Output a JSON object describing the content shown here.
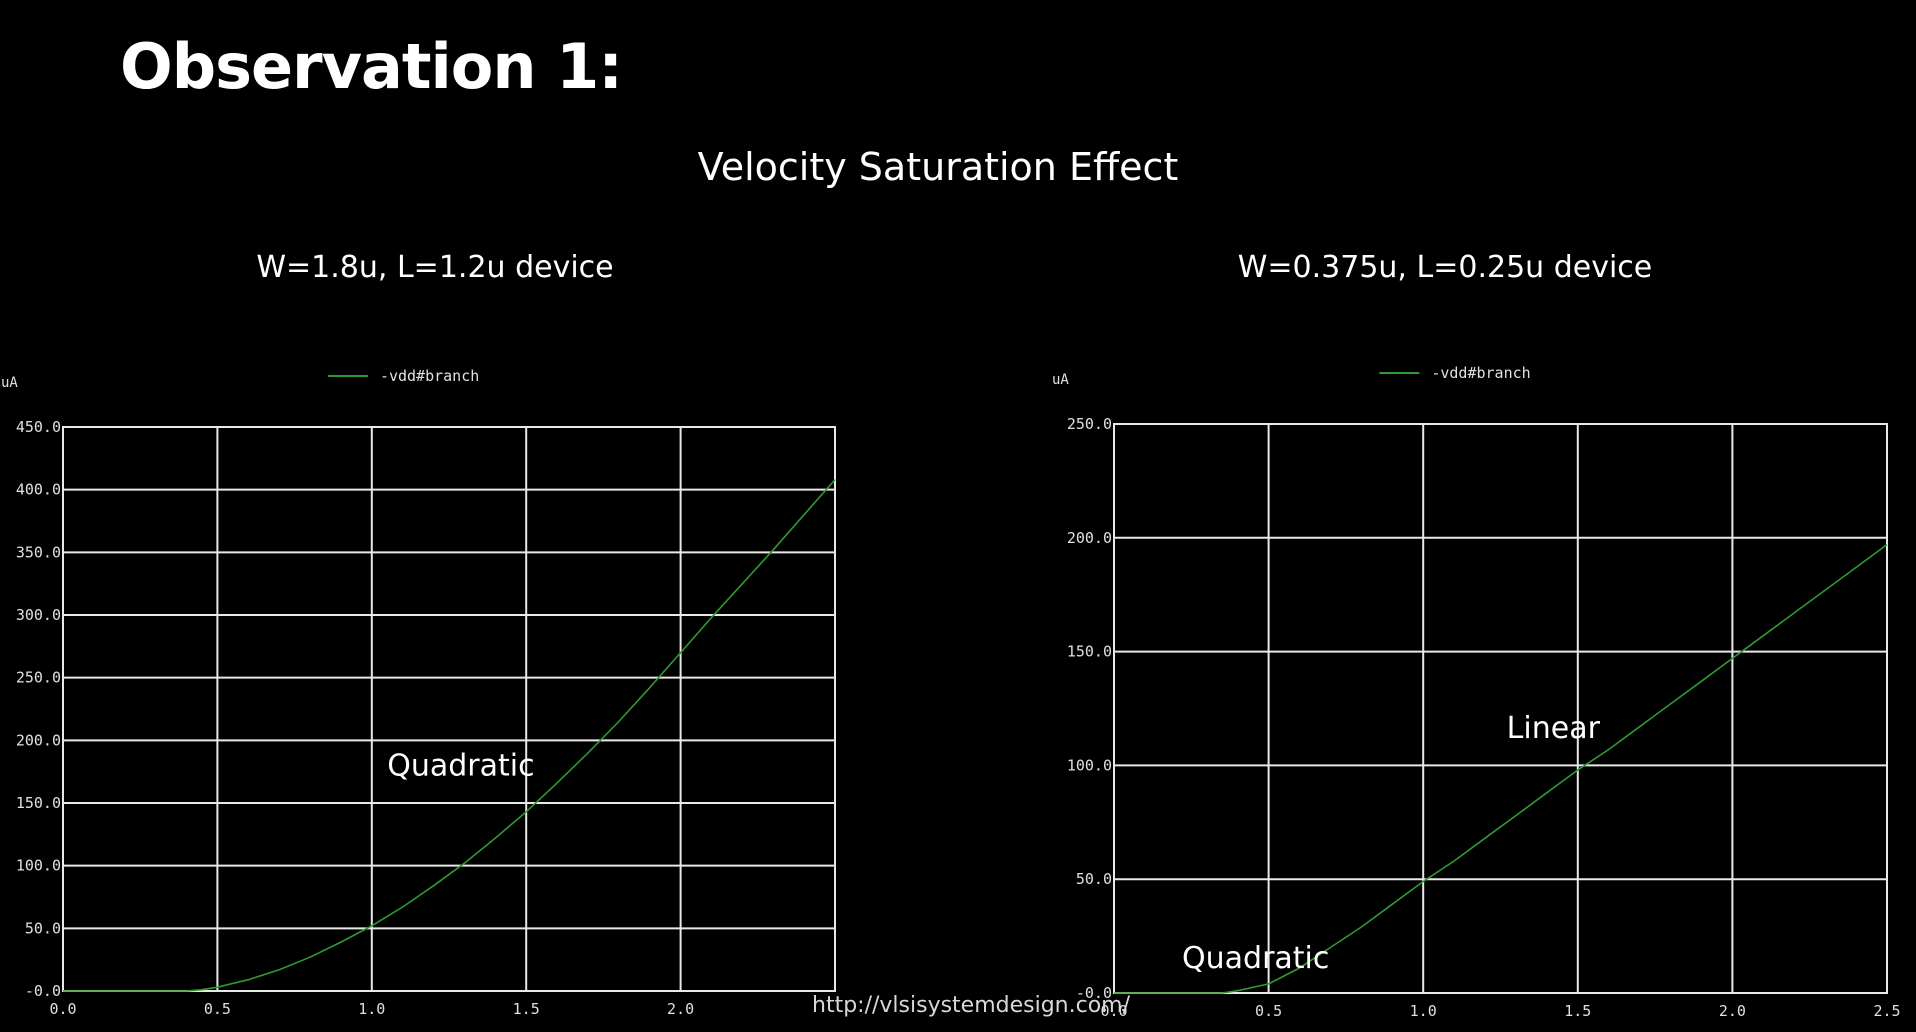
{
  "slide": {
    "heading": "Observation 1:",
    "subheading": "Velocity Saturation Effect",
    "url": "http://vlsisystemdesign.com/"
  },
  "colors": {
    "background": "#000000",
    "grid": "#e8e8e8",
    "trace": "#2f9a2f",
    "text": "#ffffff"
  },
  "chart_data": [
    {
      "type": "line",
      "device_title": "W=1.8u, L=1.2u device",
      "title": "",
      "xlabel": "",
      "ylabel": "uA",
      "xlim": [
        0,
        2.5
      ],
      "ylim": [
        0,
        450
      ],
      "xticks": [
        0.0,
        0.5,
        1.0,
        1.5,
        2.0
      ],
      "xtick_labels": [
        "0.0",
        "0.5",
        "1.0",
        "1.5",
        "2.0"
      ],
      "yticks": [
        0,
        50,
        100,
        150,
        200,
        250,
        300,
        350,
        400,
        450
      ],
      "ytick_labels": [
        "-0.0",
        "50.0",
        "100.0",
        "150.0",
        "200.0",
        "250.0",
        "300.0",
        "350.0",
        "400.0",
        "450.0"
      ],
      "grid": true,
      "legend": "top-center",
      "series": [
        {
          "name": "-vdd#branch",
          "x": [
            0.0,
            0.4,
            0.45,
            0.5,
            0.6,
            0.7,
            0.8,
            0.9,
            1.0,
            1.1,
            1.2,
            1.3,
            1.4,
            1.5,
            1.6,
            1.7,
            1.8,
            1.9,
            2.0,
            2.1,
            2.2,
            2.3,
            2.4,
            2.5
          ],
          "y": [
            0,
            0,
            1,
            3,
            9,
            17,
            27,
            39,
            52,
            67,
            84,
            102,
            122,
            143,
            166,
            190,
            215,
            242,
            270,
            298,
            325,
            352,
            380,
            408
          ]
        }
      ],
      "annotations": [
        {
          "text": "Quadratic",
          "x": 1.05,
          "y": 172
        }
      ]
    },
    {
      "type": "line",
      "device_title": "W=0.375u, L=0.25u device",
      "title": "",
      "xlabel": "",
      "ylabel": "uA",
      "xlim": [
        0,
        2.5
      ],
      "ylim": [
        0,
        250
      ],
      "xticks": [
        0.0,
        0.5,
        1.0,
        1.5,
        2.0,
        2.5
      ],
      "xtick_labels": [
        "0.0",
        "0.5",
        "1.0",
        "1.5",
        "2.0",
        "2.5"
      ],
      "yticks": [
        0,
        50,
        100,
        150,
        200,
        250
      ],
      "ytick_labels": [
        "-0.0",
        "50.0",
        "100.0",
        "150.0",
        "200.0",
        "250.0"
      ],
      "grid": true,
      "legend": "top-center",
      "series": [
        {
          "name": "-vdd#branch",
          "x": [
            0.0,
            0.35,
            0.4,
            0.5,
            0.6,
            0.7,
            0.8,
            0.9,
            1.0,
            1.1,
            1.2,
            1.3,
            1.4,
            1.5,
            1.6,
            1.7,
            1.8,
            1.9,
            2.0,
            2.1,
            2.2,
            2.3,
            2.4,
            2.5
          ],
          "y": [
            0,
            0,
            1,
            4,
            11,
            20,
            29,
            39,
            49,
            58,
            68,
            78,
            88,
            98,
            107,
            117,
            127,
            137,
            147,
            157,
            167,
            177,
            187,
            197
          ]
        }
      ],
      "annotations": [
        {
          "text": "Linear",
          "x": 1.27,
          "y": 112
        },
        {
          "text": "Quadratic",
          "x": 0.22,
          "y": 11
        }
      ]
    }
  ]
}
